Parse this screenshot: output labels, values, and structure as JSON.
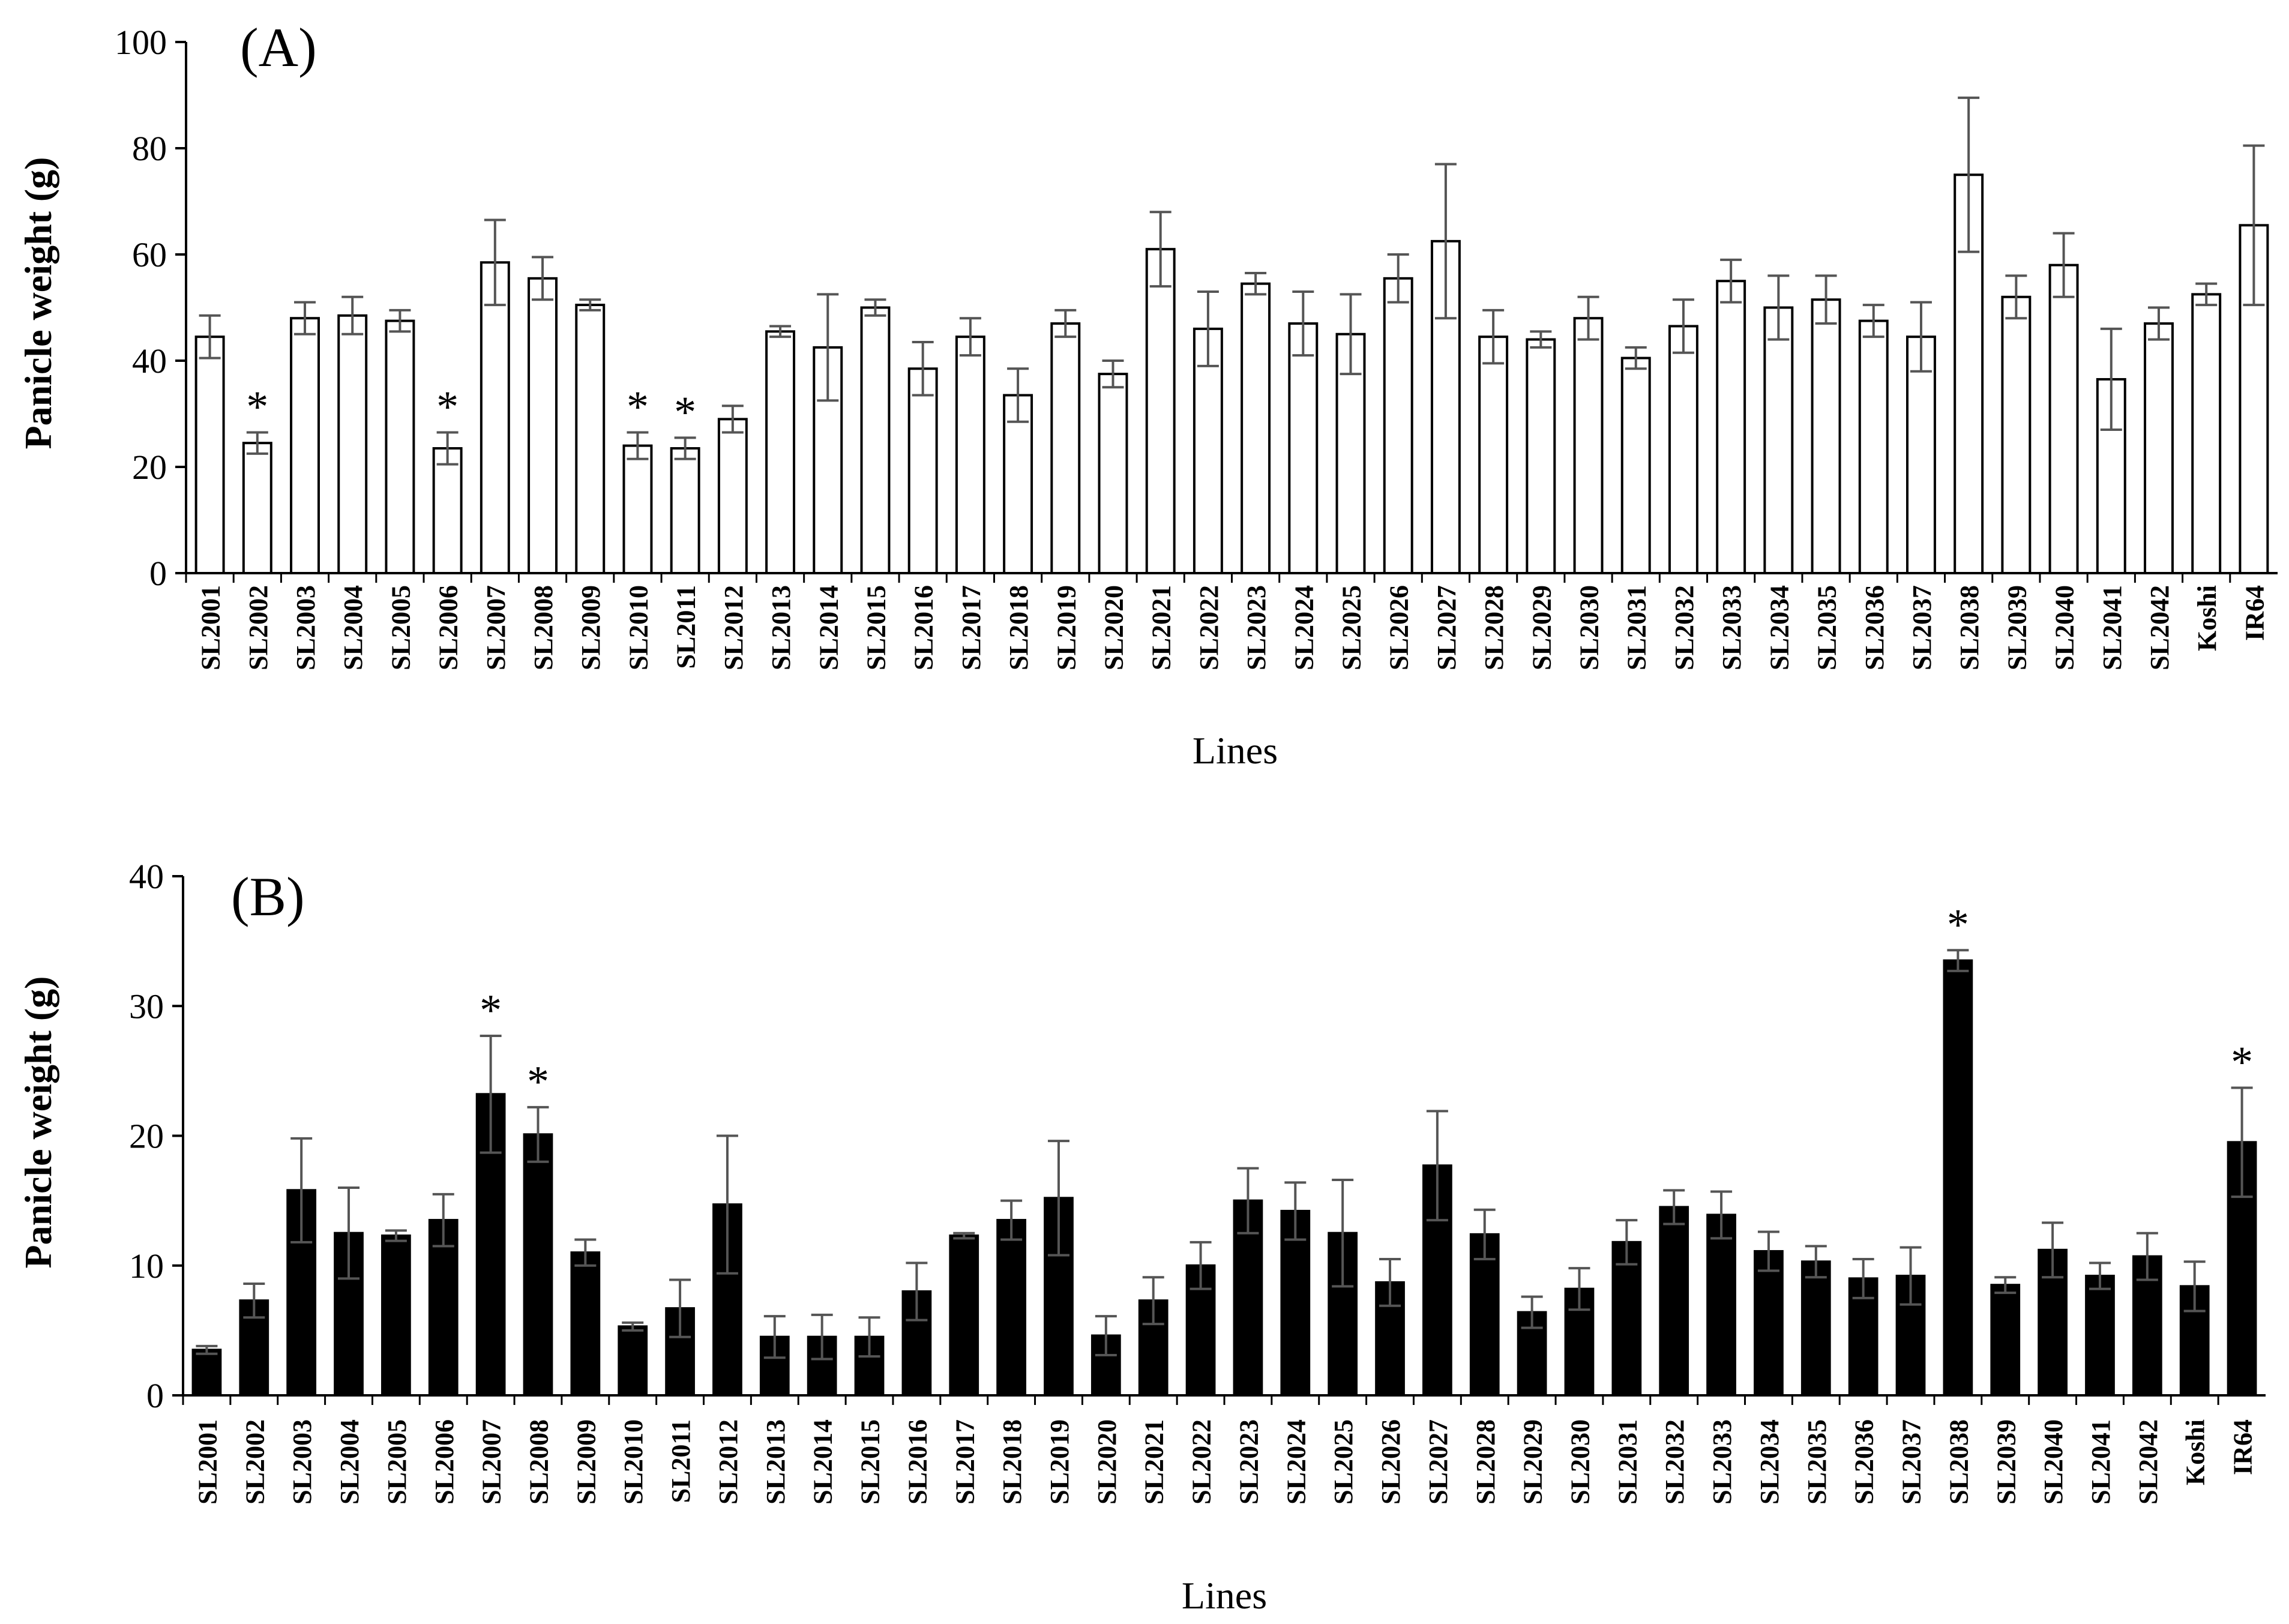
{
  "chart_data": [
    {
      "type": "bar",
      "panel_label": "(A)",
      "xlabel": "Lines",
      "ylabel": "Panicle weight (g)",
      "ylim": [
        0,
        100
      ],
      "yticks": [
        "0",
        "20",
        "40",
        "60",
        "80",
        "100"
      ],
      "bar_fill": "#ffffff",
      "bar_stroke": "#000000",
      "errorbar_color": "#555555",
      "grid": false,
      "categories": [
        "SL2001",
        "SL2002",
        "SL2003",
        "SL2004",
        "SL2005",
        "SL2006",
        "SL2007",
        "SL2008",
        "SL2009",
        "SL2010",
        "SL2011",
        "SL2012",
        "SL2013",
        "SL2014",
        "SL2015",
        "SL2016",
        "SL2017",
        "SL2018",
        "SL2019",
        "SL2020",
        "SL2021",
        "SL2022",
        "SL2023",
        "SL2024",
        "SL2025",
        "SL2026",
        "SL2027",
        "SL2028",
        "SL2029",
        "SL2030",
        "SL2031",
        "SL2032",
        "SL2033",
        "SL2034",
        "SL2035",
        "SL2036",
        "SL2037",
        "SL2038",
        "SL2039",
        "SL2040",
        "SL2041",
        "SL2042",
        "Koshi",
        "IR64"
      ],
      "values": [
        44.5,
        24.5,
        48,
        48.5,
        47.5,
        23.5,
        58.5,
        55.5,
        50.5,
        24,
        23.5,
        29,
        45.5,
        42.5,
        50,
        38.5,
        44.5,
        33.5,
        47,
        37.5,
        61,
        46,
        54.5,
        47,
        45,
        55.5,
        62.5,
        44.5,
        44,
        48,
        40.5,
        46.5,
        55,
        50,
        51.5,
        47.5,
        44.5,
        75,
        52,
        58,
        36.5,
        47,
        52.5,
        65.5
      ],
      "errors": [
        4,
        2,
        3,
        3.5,
        2,
        3,
        8,
        4,
        1,
        2.5,
        2,
        2.5,
        1,
        10,
        1.5,
        5,
        3.5,
        5,
        2.5,
        2.5,
        7,
        7,
        2,
        6,
        7.5,
        4.5,
        14.5,
        5,
        1.5,
        4,
        2,
        5,
        4,
        6,
        4.5,
        3,
        6.5,
        14.5,
        4,
        6,
        9.5,
        3,
        2,
        15
      ],
      "significant_marker": "*",
      "significant": [
        "SL2002",
        "SL2006",
        "SL2010",
        "SL2011"
      ]
    },
    {
      "type": "bar",
      "panel_label": "(B)",
      "xlabel": "Lines",
      "ylabel": "Panicle weight (g)",
      "ylim": [
        0,
        40
      ],
      "yticks": [
        "0",
        "10",
        "20",
        "30",
        "40"
      ],
      "bar_fill": "#000000",
      "bar_stroke": "#000000",
      "errorbar_color": "#555555",
      "grid": false,
      "categories": [
        "SL2001",
        "SL2002",
        "SL2003",
        "SL2004",
        "SL2005",
        "SL2006",
        "SL2007",
        "SL2008",
        "SL2009",
        "SL2010",
        "SL2011",
        "SL2012",
        "SL2013",
        "SL2014",
        "SL2015",
        "SL2016",
        "SL2017",
        "SL2018",
        "SL2019",
        "SL2020",
        "SL2021",
        "SL2022",
        "SL2023",
        "SL2024",
        "SL2025",
        "SL2026",
        "SL2027",
        "SL2028",
        "SL2029",
        "SL2030",
        "SL2031",
        "SL2032",
        "SL2033",
        "SL2034",
        "SL2035",
        "SL2036",
        "SL2037",
        "SL2038",
        "SL2039",
        "SL2040",
        "SL2041",
        "SL2042",
        "Koshi",
        "IR64"
      ],
      "values": [
        3.5,
        7.3,
        15.8,
        12.5,
        12.3,
        13.5,
        23.2,
        20.1,
        11,
        5.3,
        6.7,
        14.7,
        4.5,
        4.5,
        4.5,
        8,
        12.3,
        13.5,
        15.2,
        4.6,
        7.3,
        10,
        15,
        14.2,
        12.5,
        8.7,
        17.7,
        12.4,
        6.4,
        8.2,
        11.8,
        14.5,
        13.9,
        11.1,
        10.3,
        9,
        9.2,
        33.5,
        8.5,
        11.2,
        9.2,
        10.7,
        8.4,
        19.5
      ],
      "errors": [
        0.3,
        1.3,
        4,
        3.5,
        0.4,
        2,
        4.5,
        2.1,
        1,
        0.3,
        2.2,
        5.3,
        1.6,
        1.7,
        1.5,
        2.2,
        0.2,
        1.5,
        4.4,
        1.5,
        1.8,
        1.8,
        2.5,
        2.2,
        4.1,
        1.8,
        4.2,
        1.9,
        1.2,
        1.6,
        1.7,
        1.3,
        1.8,
        1.5,
        1.2,
        1.5,
        2.2,
        0.8,
        0.6,
        2.1,
        1,
        1.8,
        1.9,
        4.2
      ],
      "significant_marker": "*",
      "significant": [
        "SL2007",
        "SL2008",
        "SL2038",
        "IR64"
      ]
    }
  ]
}
